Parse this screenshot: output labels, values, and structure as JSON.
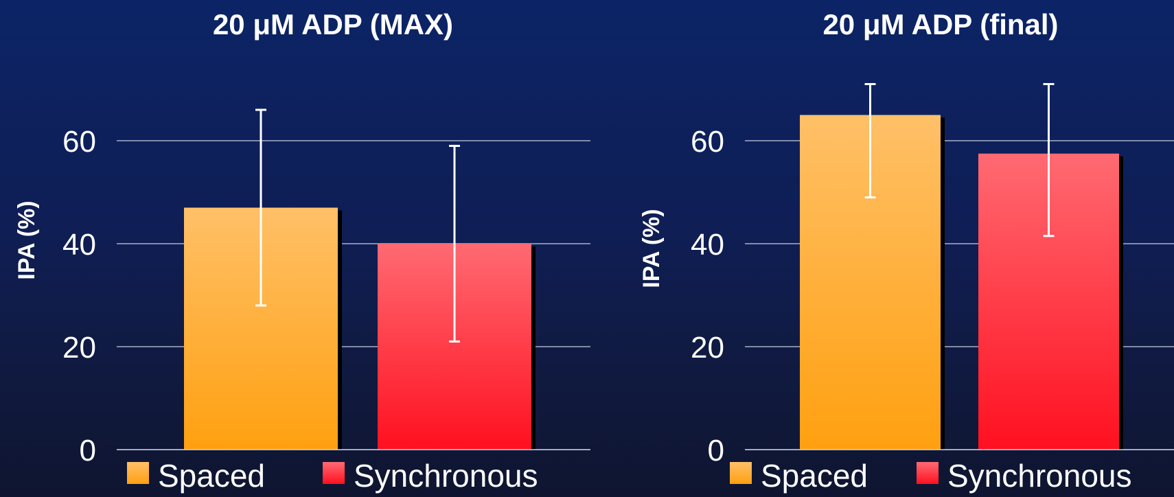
{
  "chart_data": [
    {
      "type": "bar",
      "title": "20 μM ADP (MAX)",
      "ylabel": "IPA (%)",
      "xlabel": "",
      "categories": [
        "Spaced",
        "Synchronous"
      ],
      "values": [
        47,
        40
      ],
      "error_low": [
        28,
        21
      ],
      "error_high": [
        66,
        59
      ],
      "ylim": [
        0,
        72
      ],
      "yticks": [
        0,
        20,
        40,
        60
      ],
      "grid": true,
      "legend": "bottom",
      "colors": [
        "#ffa51a",
        "#ff2a3a"
      ]
    },
    {
      "type": "bar",
      "title": "20 μM ADP (final)",
      "ylabel": "IPA (%)",
      "xlabel": "",
      "categories": [
        "Spaced",
        "Synchronous"
      ],
      "values": [
        65,
        57.5
      ],
      "error_low": [
        49,
        41.5
      ],
      "error_high": [
        71,
        71
      ],
      "ylim": [
        0,
        72
      ],
      "yticks": [
        0,
        20,
        40,
        60
      ],
      "grid": true,
      "legend": "bottom",
      "colors": [
        "#ffa51a",
        "#ff2a3a"
      ]
    }
  ]
}
